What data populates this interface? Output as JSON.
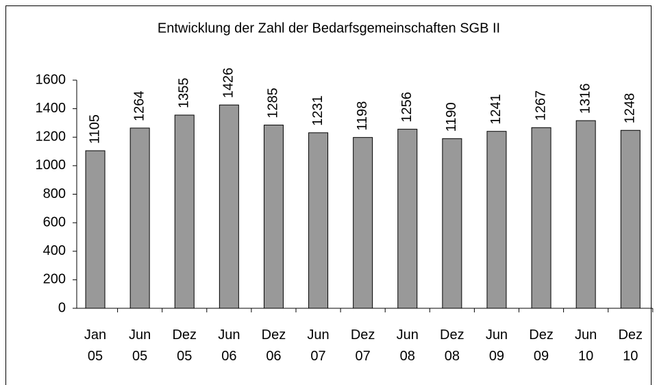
{
  "chart_data": {
    "type": "bar",
    "title": "Entwicklung der Zahl der Bedarfsgemeinschaften SGB II",
    "categories": [
      "Jan 05",
      "Jun 05",
      "Dez 05",
      "Jun 06",
      "Dez 06",
      "Jun 07",
      "Dez 07",
      "Jun 08",
      "Dez 08",
      "Jun 09",
      "Dez 09",
      "Jun 10",
      "Dez 10"
    ],
    "values": [
      1105,
      1264,
      1355,
      1426,
      1285,
      1231,
      1198,
      1256,
      1190,
      1241,
      1267,
      1316,
      1248
    ],
    "color": "#999999",
    "ylim": [
      0,
      1600
    ],
    "yticks": [
      0,
      200,
      400,
      600,
      800,
      1000,
      1200,
      1400,
      1600
    ],
    "grid": false
  }
}
